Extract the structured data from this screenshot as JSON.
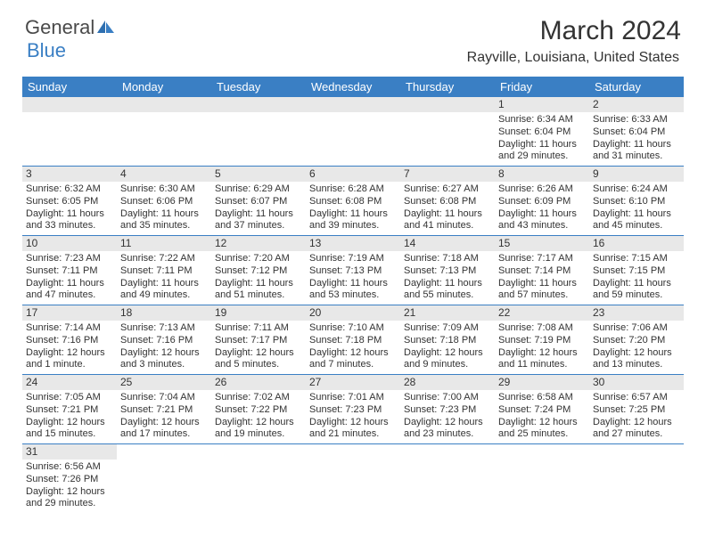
{
  "logo": {
    "text1": "General",
    "text2": "Blue"
  },
  "title": "March 2024",
  "location": "Rayville, Louisiana, United States",
  "colors": {
    "header_bg": "#3a7fc4",
    "header_text": "#ffffff",
    "daynum_bg": "#e8e8e8",
    "border": "#3a7fc4",
    "text": "#333333"
  },
  "weekdays": [
    "Sunday",
    "Monday",
    "Tuesday",
    "Wednesday",
    "Thursday",
    "Friday",
    "Saturday"
  ],
  "weeks": [
    [
      null,
      null,
      null,
      null,
      null,
      {
        "n": "1",
        "sr": "Sunrise: 6:34 AM",
        "ss": "Sunset: 6:04 PM",
        "d1": "Daylight: 11 hours",
        "d2": "and 29 minutes."
      },
      {
        "n": "2",
        "sr": "Sunrise: 6:33 AM",
        "ss": "Sunset: 6:04 PM",
        "d1": "Daylight: 11 hours",
        "d2": "and 31 minutes."
      }
    ],
    [
      {
        "n": "3",
        "sr": "Sunrise: 6:32 AM",
        "ss": "Sunset: 6:05 PM",
        "d1": "Daylight: 11 hours",
        "d2": "and 33 minutes."
      },
      {
        "n": "4",
        "sr": "Sunrise: 6:30 AM",
        "ss": "Sunset: 6:06 PM",
        "d1": "Daylight: 11 hours",
        "d2": "and 35 minutes."
      },
      {
        "n": "5",
        "sr": "Sunrise: 6:29 AM",
        "ss": "Sunset: 6:07 PM",
        "d1": "Daylight: 11 hours",
        "d2": "and 37 minutes."
      },
      {
        "n": "6",
        "sr": "Sunrise: 6:28 AM",
        "ss": "Sunset: 6:08 PM",
        "d1": "Daylight: 11 hours",
        "d2": "and 39 minutes."
      },
      {
        "n": "7",
        "sr": "Sunrise: 6:27 AM",
        "ss": "Sunset: 6:08 PM",
        "d1": "Daylight: 11 hours",
        "d2": "and 41 minutes."
      },
      {
        "n": "8",
        "sr": "Sunrise: 6:26 AM",
        "ss": "Sunset: 6:09 PM",
        "d1": "Daylight: 11 hours",
        "d2": "and 43 minutes."
      },
      {
        "n": "9",
        "sr": "Sunrise: 6:24 AM",
        "ss": "Sunset: 6:10 PM",
        "d1": "Daylight: 11 hours",
        "d2": "and 45 minutes."
      }
    ],
    [
      {
        "n": "10",
        "sr": "Sunrise: 7:23 AM",
        "ss": "Sunset: 7:11 PM",
        "d1": "Daylight: 11 hours",
        "d2": "and 47 minutes."
      },
      {
        "n": "11",
        "sr": "Sunrise: 7:22 AM",
        "ss": "Sunset: 7:11 PM",
        "d1": "Daylight: 11 hours",
        "d2": "and 49 minutes."
      },
      {
        "n": "12",
        "sr": "Sunrise: 7:20 AM",
        "ss": "Sunset: 7:12 PM",
        "d1": "Daylight: 11 hours",
        "d2": "and 51 minutes."
      },
      {
        "n": "13",
        "sr": "Sunrise: 7:19 AM",
        "ss": "Sunset: 7:13 PM",
        "d1": "Daylight: 11 hours",
        "d2": "and 53 minutes."
      },
      {
        "n": "14",
        "sr": "Sunrise: 7:18 AM",
        "ss": "Sunset: 7:13 PM",
        "d1": "Daylight: 11 hours",
        "d2": "and 55 minutes."
      },
      {
        "n": "15",
        "sr": "Sunrise: 7:17 AM",
        "ss": "Sunset: 7:14 PM",
        "d1": "Daylight: 11 hours",
        "d2": "and 57 minutes."
      },
      {
        "n": "16",
        "sr": "Sunrise: 7:15 AM",
        "ss": "Sunset: 7:15 PM",
        "d1": "Daylight: 11 hours",
        "d2": "and 59 minutes."
      }
    ],
    [
      {
        "n": "17",
        "sr": "Sunrise: 7:14 AM",
        "ss": "Sunset: 7:16 PM",
        "d1": "Daylight: 12 hours",
        "d2": "and 1 minute."
      },
      {
        "n": "18",
        "sr": "Sunrise: 7:13 AM",
        "ss": "Sunset: 7:16 PM",
        "d1": "Daylight: 12 hours",
        "d2": "and 3 minutes."
      },
      {
        "n": "19",
        "sr": "Sunrise: 7:11 AM",
        "ss": "Sunset: 7:17 PM",
        "d1": "Daylight: 12 hours",
        "d2": "and 5 minutes."
      },
      {
        "n": "20",
        "sr": "Sunrise: 7:10 AM",
        "ss": "Sunset: 7:18 PM",
        "d1": "Daylight: 12 hours",
        "d2": "and 7 minutes."
      },
      {
        "n": "21",
        "sr": "Sunrise: 7:09 AM",
        "ss": "Sunset: 7:18 PM",
        "d1": "Daylight: 12 hours",
        "d2": "and 9 minutes."
      },
      {
        "n": "22",
        "sr": "Sunrise: 7:08 AM",
        "ss": "Sunset: 7:19 PM",
        "d1": "Daylight: 12 hours",
        "d2": "and 11 minutes."
      },
      {
        "n": "23",
        "sr": "Sunrise: 7:06 AM",
        "ss": "Sunset: 7:20 PM",
        "d1": "Daylight: 12 hours",
        "d2": "and 13 minutes."
      }
    ],
    [
      {
        "n": "24",
        "sr": "Sunrise: 7:05 AM",
        "ss": "Sunset: 7:21 PM",
        "d1": "Daylight: 12 hours",
        "d2": "and 15 minutes."
      },
      {
        "n": "25",
        "sr": "Sunrise: 7:04 AM",
        "ss": "Sunset: 7:21 PM",
        "d1": "Daylight: 12 hours",
        "d2": "and 17 minutes."
      },
      {
        "n": "26",
        "sr": "Sunrise: 7:02 AM",
        "ss": "Sunset: 7:22 PM",
        "d1": "Daylight: 12 hours",
        "d2": "and 19 minutes."
      },
      {
        "n": "27",
        "sr": "Sunrise: 7:01 AM",
        "ss": "Sunset: 7:23 PM",
        "d1": "Daylight: 12 hours",
        "d2": "and 21 minutes."
      },
      {
        "n": "28",
        "sr": "Sunrise: 7:00 AM",
        "ss": "Sunset: 7:23 PM",
        "d1": "Daylight: 12 hours",
        "d2": "and 23 minutes."
      },
      {
        "n": "29",
        "sr": "Sunrise: 6:58 AM",
        "ss": "Sunset: 7:24 PM",
        "d1": "Daylight: 12 hours",
        "d2": "and 25 minutes."
      },
      {
        "n": "30",
        "sr": "Sunrise: 6:57 AM",
        "ss": "Sunset: 7:25 PM",
        "d1": "Daylight: 12 hours",
        "d2": "and 27 minutes."
      }
    ],
    [
      {
        "n": "31",
        "sr": "Sunrise: 6:56 AM",
        "ss": "Sunset: 7:26 PM",
        "d1": "Daylight: 12 hours",
        "d2": "and 29 minutes."
      },
      null,
      null,
      null,
      null,
      null,
      null
    ]
  ]
}
